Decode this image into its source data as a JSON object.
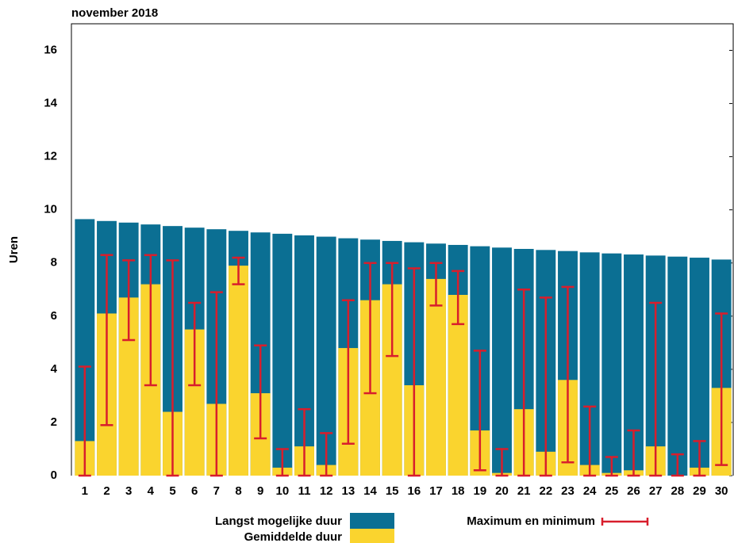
{
  "chart_data": {
    "type": "bar",
    "title": "november 2018",
    "y_label": "Uren",
    "categories": [
      "1",
      "2",
      "3",
      "4",
      "5",
      "6",
      "7",
      "8",
      "9",
      "10",
      "11",
      "12",
      "13",
      "14",
      "15",
      "16",
      "17",
      "18",
      "19",
      "20",
      "21",
      "22",
      "23",
      "24",
      "25",
      "26",
      "27",
      "28",
      "29",
      "30"
    ],
    "ylim": [
      0,
      17
    ],
    "yticks": [
      0,
      2,
      4,
      6,
      8,
      10,
      12,
      14,
      16
    ],
    "series": [
      {
        "name": "Langst mogelijke duur",
        "color": "#0b6f93",
        "values": [
          9.65,
          9.58,
          9.52,
          9.45,
          9.39,
          9.33,
          9.27,
          9.21,
          9.15,
          9.1,
          9.04,
          8.99,
          8.93,
          8.88,
          8.83,
          8.78,
          8.73,
          8.68,
          8.63,
          8.58,
          8.53,
          8.49,
          8.45,
          8.4,
          8.36,
          8.32,
          8.28,
          8.24,
          8.2,
          8.13
        ]
      },
      {
        "name": "Gemiddelde duur",
        "color": "#fad42e",
        "values": [
          1.3,
          6.1,
          6.7,
          7.2,
          2.4,
          5.5,
          2.7,
          7.9,
          3.1,
          0.3,
          1.1,
          0.4,
          4.8,
          6.6,
          7.2,
          3.4,
          7.4,
          6.8,
          1.7,
          0.1,
          2.5,
          0.9,
          3.6,
          0.4,
          0.1,
          0.2,
          1.1,
          0,
          0.3,
          3.3
        ]
      },
      {
        "name": "Maximum en minimum",
        "type": "errorbar",
        "color": "#d81e2c",
        "max": [
          4.1,
          8.3,
          8.1,
          8.3,
          8.1,
          6.5,
          6.9,
          8.2,
          4.9,
          1.0,
          2.5,
          1.6,
          6.6,
          8.0,
          8.0,
          7.8,
          8.0,
          7.7,
          4.7,
          1.0,
          7.0,
          6.7,
          7.1,
          2.6,
          0.7,
          1.7,
          6.5,
          0.8,
          1.3,
          6.1
        ],
        "min": [
          0,
          1.9,
          5.1,
          3.4,
          0,
          3.4,
          0,
          7.2,
          1.4,
          0,
          0,
          0,
          1.2,
          3.1,
          4.5,
          0,
          6.4,
          5.7,
          0.2,
          0,
          0,
          0,
          0.5,
          0,
          0,
          0,
          0,
          0,
          0,
          0.4
        ]
      }
    ]
  }
}
